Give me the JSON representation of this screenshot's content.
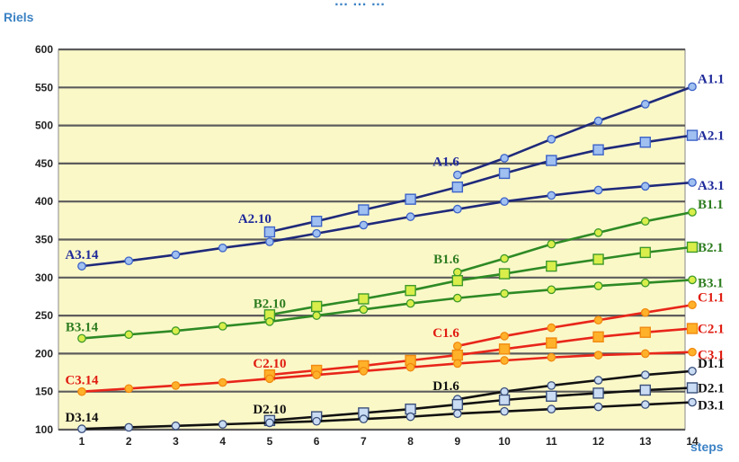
{
  "chart_data": {
    "type": "line",
    "title": "… … …",
    "ylabel": "Riels",
    "xlabel": "steps",
    "x": [
      1,
      2,
      3,
      4,
      5,
      6,
      7,
      8,
      9,
      10,
      11,
      12,
      13,
      14
    ],
    "ylim": [
      100,
      600
    ],
    "yticks": [
      100,
      150,
      200,
      250,
      300,
      350,
      400,
      450,
      500,
      550,
      600
    ],
    "grid": true,
    "background": "#fbf8c8",
    "series": [
      {
        "name": "A1.1",
        "group": "A",
        "marker": "circle",
        "color": "#1f2a7a",
        "label_color": "#1f2a9a",
        "x": [
          9,
          10,
          11,
          12,
          13,
          14
        ],
        "values": [
          435,
          457,
          482,
          506,
          528,
          551
        ]
      },
      {
        "name": "A2.1",
        "group": "A",
        "marker": "square",
        "color": "#1f2a7a",
        "label_color": "#1f2a9a",
        "x": [
          5,
          6,
          7,
          8,
          9,
          10,
          11,
          12,
          13,
          14
        ],
        "values": [
          360,
          374,
          389,
          403,
          419,
          437,
          454,
          468,
          478,
          487
        ]
      },
      {
        "name": "A3.1",
        "group": "A",
        "marker": "circle",
        "color": "#1f2a7a",
        "label_color": "#1f2a9a",
        "x": [
          1,
          2,
          3,
          4,
          5,
          6,
          7,
          8,
          9,
          10,
          11,
          12,
          13,
          14
        ],
        "values": [
          315,
          322,
          330,
          339,
          347,
          358,
          369,
          380,
          390,
          400,
          408,
          415,
          420,
          425
        ]
      },
      {
        "name": "B1.1",
        "group": "B",
        "marker": "circle",
        "color": "#2e8a25",
        "label_color": "#2e7d20",
        "x": [
          9,
          10,
          11,
          12,
          13,
          14
        ],
        "values": [
          307,
          325,
          344,
          359,
          374,
          386
        ]
      },
      {
        "name": "B2.1",
        "group": "B",
        "marker": "square",
        "color": "#2e8a25",
        "label_color": "#2e7d20",
        "x": [
          5,
          6,
          7,
          8,
          9,
          10,
          11,
          12,
          13,
          14
        ],
        "values": [
          251,
          262,
          272,
          283,
          296,
          305,
          315,
          324,
          333,
          340
        ]
      },
      {
        "name": "B3.1",
        "group": "B",
        "marker": "circle",
        "color": "#2e8a25",
        "label_color": "#2e7d20",
        "x": [
          1,
          2,
          3,
          4,
          5,
          6,
          7,
          8,
          9,
          10,
          11,
          12,
          13,
          14
        ],
        "values": [
          220,
          225,
          230,
          236,
          242,
          250,
          258,
          266,
          273,
          279,
          284,
          289,
          293,
          297
        ]
      },
      {
        "name": "C1.1",
        "group": "C",
        "marker": "circle",
        "color": "#e8261a",
        "label_color": "#e01b10",
        "x": [
          9,
          10,
          11,
          12,
          13,
          14
        ],
        "values": [
          210,
          223,
          234,
          244,
          254,
          264
        ]
      },
      {
        "name": "C2.1",
        "group": "C",
        "marker": "square",
        "color": "#e8261a",
        "label_color": "#e01b10",
        "x": [
          5,
          6,
          7,
          8,
          9,
          10,
          11,
          12,
          13,
          14
        ],
        "values": [
          172,
          178,
          184,
          191,
          198,
          206,
          214,
          222,
          228,
          233
        ]
      },
      {
        "name": "C3.1",
        "group": "C",
        "marker": "circle",
        "color": "#e8261a",
        "label_color": "#e01b10",
        "x": [
          1,
          2,
          3,
          4,
          5,
          6,
          7,
          8,
          9,
          10,
          11,
          12,
          13,
          14
        ],
        "values": [
          150,
          154,
          158,
          162,
          167,
          172,
          177,
          182,
          187,
          191,
          195,
          198,
          200,
          202
        ]
      },
      {
        "name": "D1.1",
        "group": "D",
        "marker": "circle",
        "color": "#111111",
        "label_color": "#111111",
        "x": [
          9,
          10,
          11,
          12,
          13,
          14
        ],
        "values": [
          140,
          150,
          158,
          165,
          172,
          177
        ]
      },
      {
        "name": "D2.1",
        "group": "D",
        "marker": "square",
        "color": "#111111",
        "label_color": "#111111",
        "x": [
          5,
          6,
          7,
          8,
          9,
          10,
          11,
          12,
          13,
          14
        ],
        "values": [
          112,
          117,
          122,
          127,
          133,
          139,
          144,
          148,
          152,
          155
        ]
      },
      {
        "name": "D3.1",
        "group": "D",
        "marker": "circle",
        "color": "#111111",
        "label_color": "#111111",
        "x": [
          1,
          2,
          3,
          4,
          5,
          6,
          7,
          8,
          9,
          10,
          11,
          12,
          13,
          14
        ],
        "values": [
          101,
          103,
          105,
          107,
          109,
          111,
          114,
          117,
          121,
          124,
          127,
          130,
          133,
          136
        ]
      }
    ],
    "annotations": [
      {
        "text": "A1.6",
        "x": 9,
        "y": 435,
        "color": "#1f2a9a",
        "anchor": "above-left"
      },
      {
        "text": "A2.10",
        "x": 5,
        "y": 360,
        "color": "#1f2a9a",
        "anchor": "above-left"
      },
      {
        "text": "A3.14",
        "x": 1,
        "y": 315,
        "color": "#1f2a9a",
        "anchor": "above"
      },
      {
        "text": "B1.6",
        "x": 9,
        "y": 307,
        "color": "#2e7d20",
        "anchor": "above-left"
      },
      {
        "text": "B2.10",
        "x": 5,
        "y": 251,
        "color": "#2e7d20",
        "anchor": "above"
      },
      {
        "text": "B3.14",
        "x": 1,
        "y": 220,
        "color": "#2e7d20",
        "anchor": "above"
      },
      {
        "text": "C1.6",
        "x": 9,
        "y": 210,
        "color": "#e01b10",
        "anchor": "above-left"
      },
      {
        "text": "C2.10",
        "x": 5,
        "y": 172,
        "color": "#e01b10",
        "anchor": "above"
      },
      {
        "text": "C3.14",
        "x": 1,
        "y": 150,
        "color": "#e01b10",
        "anchor": "above"
      },
      {
        "text": "D1.6",
        "x": 9,
        "y": 140,
        "color": "#111111",
        "anchor": "above-left"
      },
      {
        "text": "D2.10",
        "x": 5,
        "y": 112,
        "color": "#111111",
        "anchor": "above"
      },
      {
        "text": "D3.14",
        "x": 1,
        "y": 101,
        "color": "#111111",
        "anchor": "above"
      }
    ]
  }
}
